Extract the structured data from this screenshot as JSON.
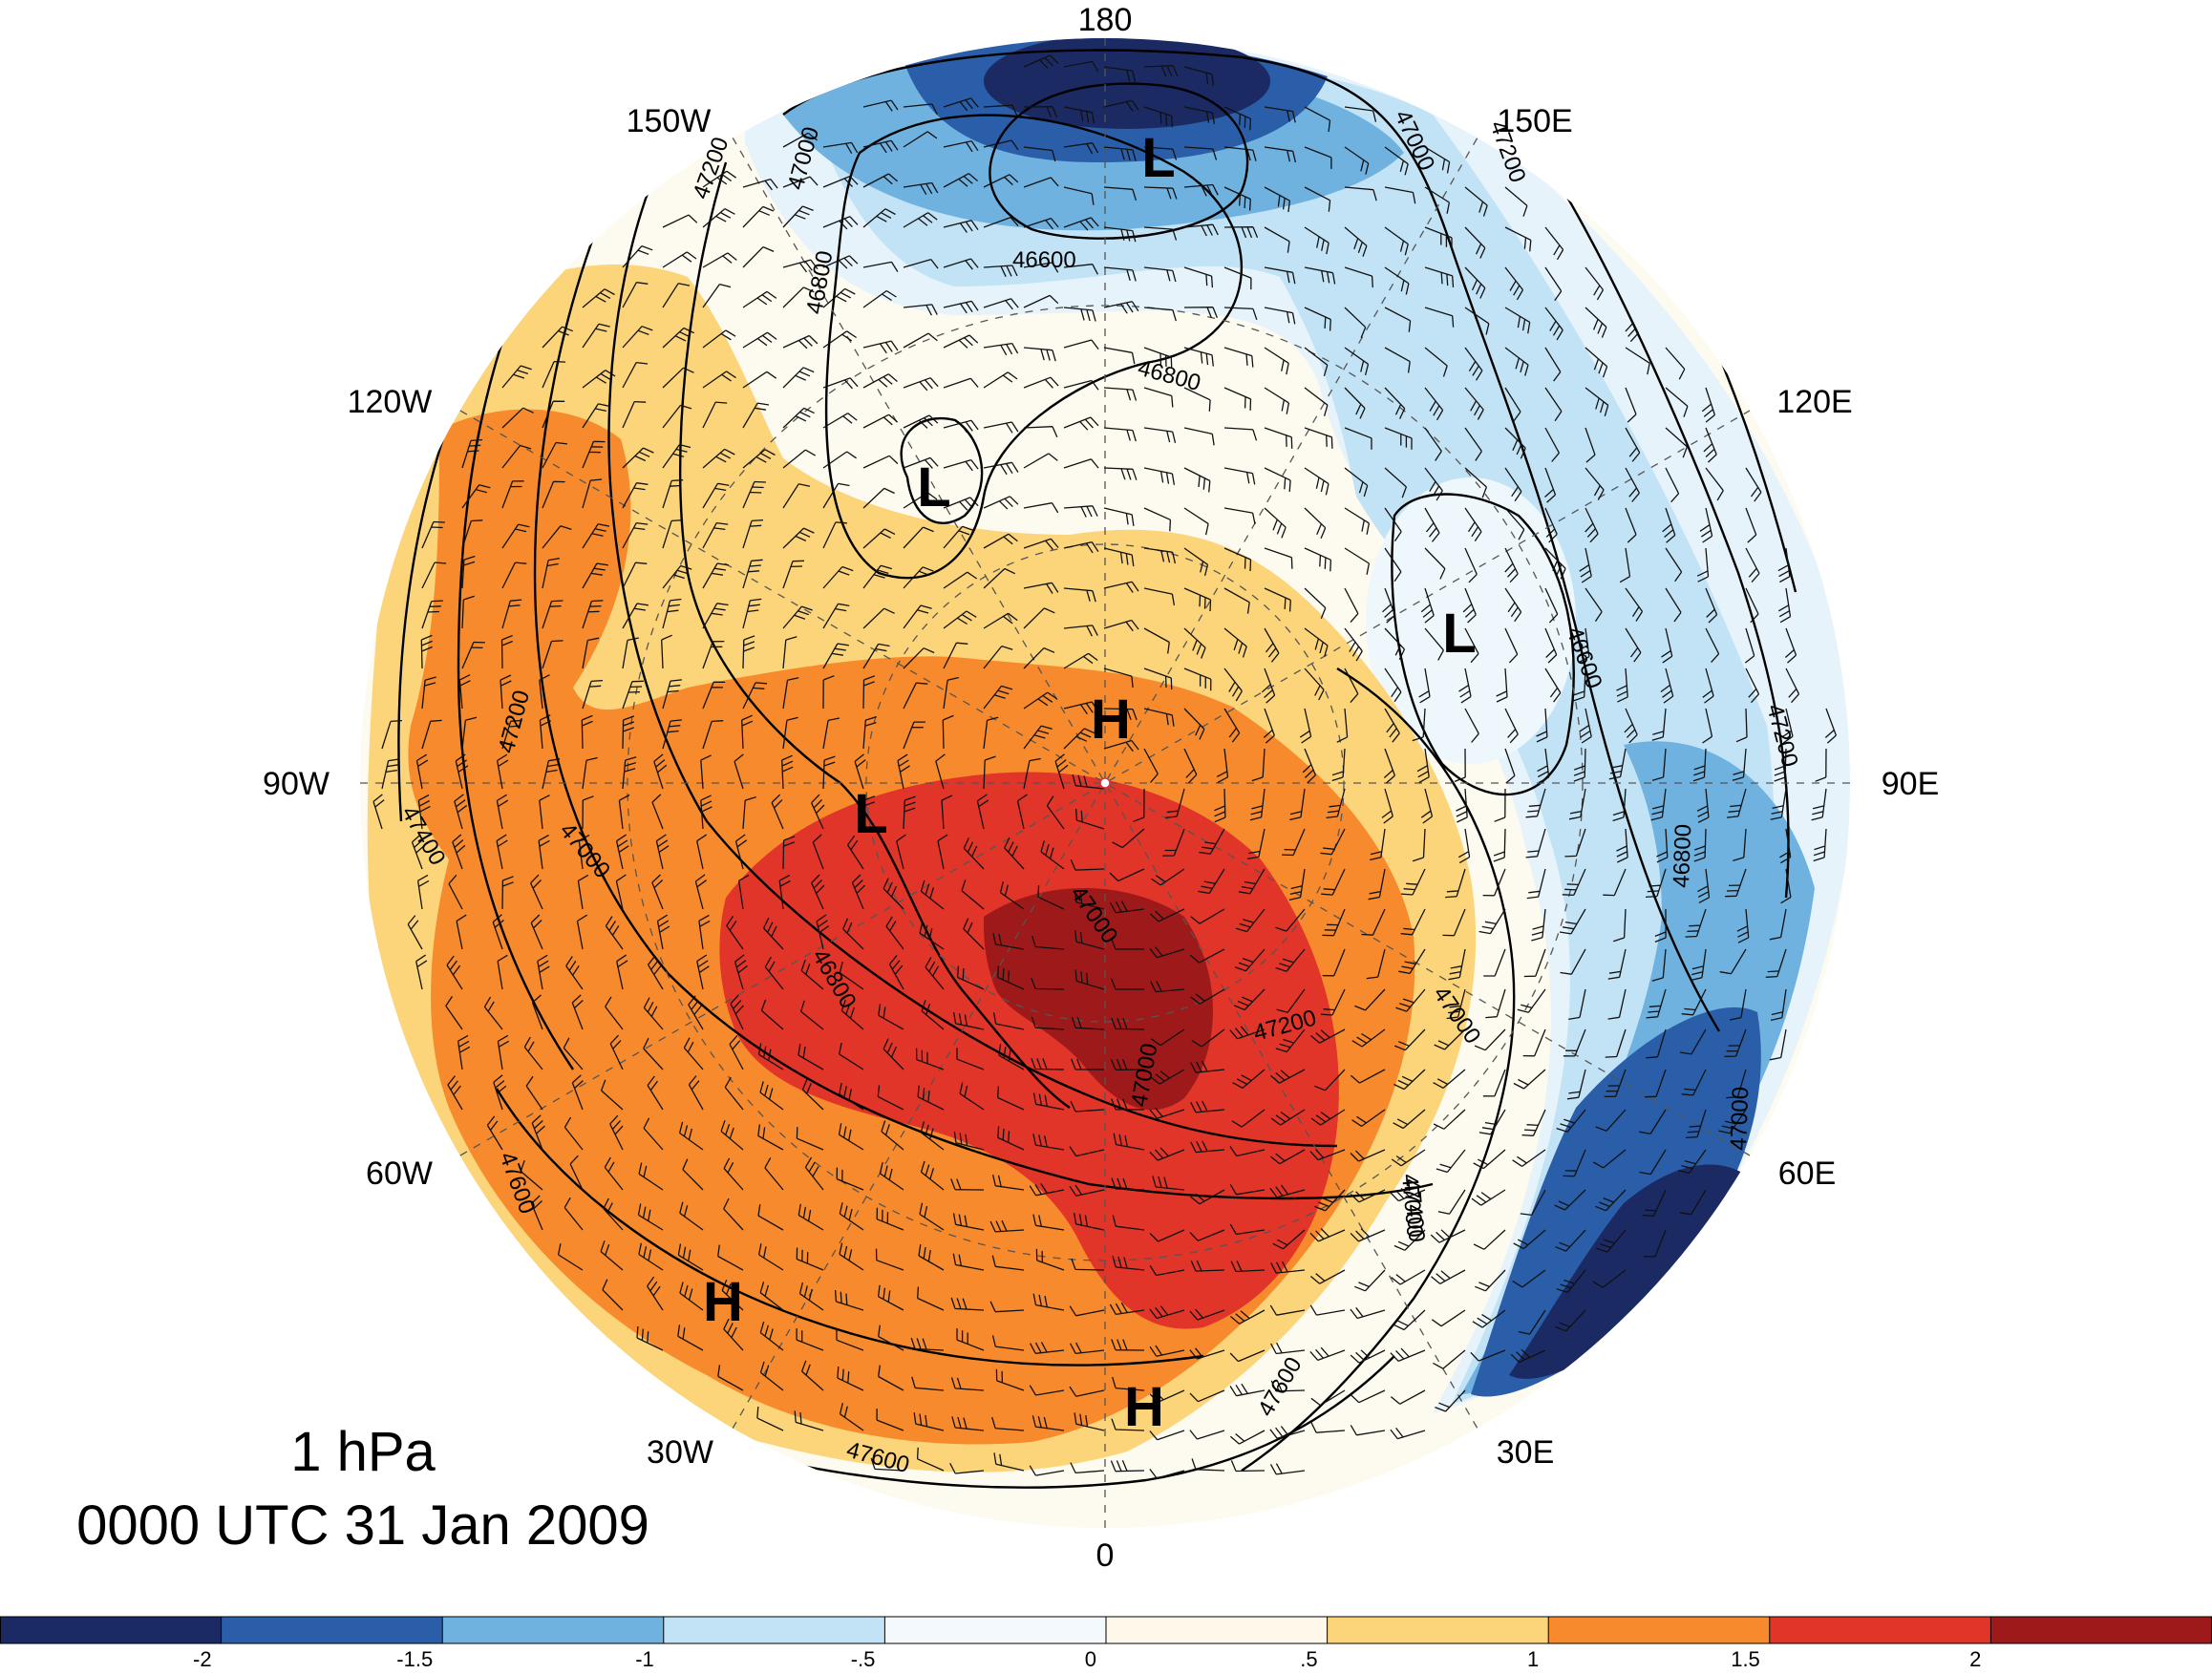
{
  "map": {
    "level": "1 hPa",
    "valid_time": "0000 UTC 31 Jan 2009",
    "projection": "north-polar-stereographic",
    "longitude_labels": {
      "180": "180",
      "150E": "150E",
      "120E": "120E",
      "90E": "90E",
      "60E": "60E",
      "30E": "30E",
      "0": "0",
      "30W": "30W",
      "60W": "60W",
      "90W": "90W",
      "120W": "120W",
      "150W": "150W"
    },
    "pressure_centers": [
      {
        "name": "low-180",
        "letter": "L"
      },
      {
        "name": "low-150w",
        "letter": "L"
      },
      {
        "name": "low-100e",
        "letter": "L"
      },
      {
        "name": "low-canada",
        "letter": "L"
      },
      {
        "name": "high-pole",
        "letter": "H"
      },
      {
        "name": "high-atlantic",
        "letter": "H"
      },
      {
        "name": "high-europe",
        "letter": "H"
      }
    ],
    "contour_labels": {
      "c46600_top": "46600",
      "c46600_east": "46600",
      "c46800_top": "46800",
      "c46800_east": "46800",
      "c46800_west": "46800",
      "c46800_center": "46800",
      "c47000_top": "47000",
      "c47000_ne": "47000",
      "c47000_west": "47000",
      "c47000_center": "47000",
      "c47000_center2": "47000",
      "c47000_se": "47000",
      "c47000_se2": "47000",
      "c47000_east": "47000",
      "c47200_nw": "47200",
      "c47200_ne": "47200",
      "c47200_east": "47200",
      "c47200_west": "47200",
      "c47200_center": "47200",
      "c47400_west": "47400",
      "c47400_se": "47400",
      "c47600_sw": "47600",
      "c47600_bottom": "47600",
      "c47600_se": "47600"
    }
  },
  "colorbar": {
    "colors": [
      "#1b2a63",
      "#2a5ea8",
      "#6fb2e0",
      "#c2e3f5",
      "#f3f9fd",
      "#fdf8ea",
      "#fcd57a",
      "#f78a2c",
      "#e03528",
      "#9e1a1a"
    ],
    "tick_labels": [
      "-2",
      "-1.5",
      "-1",
      "-.5",
      "0",
      ".5",
      "1",
      "1.5",
      "2"
    ]
  }
}
